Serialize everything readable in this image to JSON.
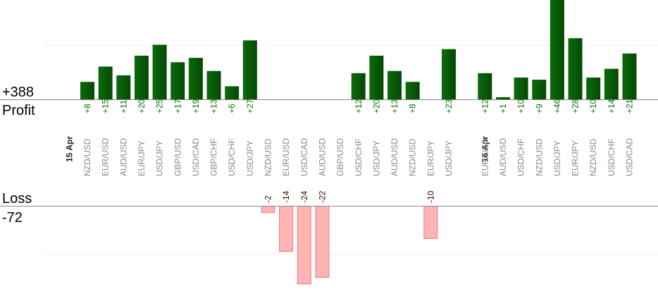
{
  "chart_data": {
    "type": "bar",
    "totals": {
      "profit_total": "+388",
      "profit_label": "Profit",
      "loss_label": "Loss",
      "loss_total": "-72"
    },
    "date_groups": [
      {
        "label": "15 Apr",
        "start_index": 0
      },
      {
        "label": "16 Apr",
        "start_index": 22
      }
    ],
    "categories": [
      "NZD/USD",
      "EUR/USD",
      "AUD/USD",
      "EUR/JPY",
      "USD/JPY",
      "GBP/USD",
      "USD/CAD",
      "GBP/CHF",
      "USD/CHF",
      "USD/JPY",
      "NZD/USD",
      "EUR/USD",
      "USD/CAD",
      "AUD/USD",
      "GBP/USD",
      "USD/CHF",
      "USD/JPY",
      "AUD/USD",
      "NZD/USD",
      "EUR/JPY",
      "USD/JPY",
      "EUR/USD",
      "AUD/USD",
      "USD/CHF",
      "NZD/USD",
      "USD/JPY",
      "EUR/JPY",
      "NZD/USD",
      "USD/CHF",
      "USD/CAD"
    ],
    "values": [
      8,
      15,
      11,
      20,
      25,
      17,
      19,
      13,
      6,
      27,
      -2,
      -14,
      -24,
      -22,
      0,
      12,
      20,
      13,
      8,
      -10,
      23,
      12,
      1,
      10,
      9,
      46,
      28,
      10,
      14,
      21
    ],
    "value_labels": [
      "+8",
      "+15",
      "+11",
      "+20",
      "+25",
      "+17",
      "+19",
      "+13",
      "+6",
      "+27",
      "-2",
      "-14",
      "-24",
      "-22",
      "",
      "+12",
      "+20",
      "+13",
      "+8",
      "-10",
      "+23",
      "+12",
      "+1",
      "+10",
      "+9",
      "+46",
      "+28",
      "+10",
      "+14",
      "+21"
    ],
    "colors": {
      "profit": "#0b6b0b",
      "profit_dark": "#054805",
      "loss": "#ffb3b3",
      "loss_border": "#e08080",
      "profit_text": "#0b6b0b",
      "loss_text": "#3a0a0a",
      "axis": "#888888",
      "grid": "#eeeeee"
    }
  }
}
